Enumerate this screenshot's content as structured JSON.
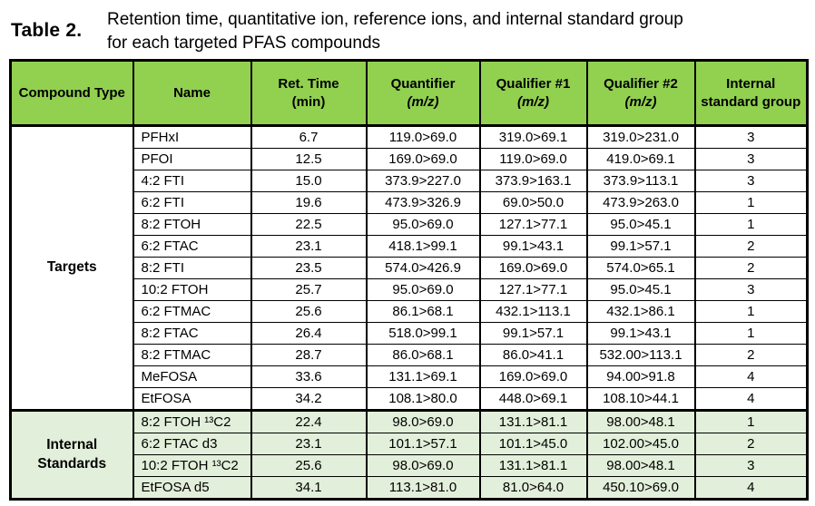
{
  "title": {
    "label": "Table 2.",
    "caption": {
      "line1": "Retention time, quantitative ion, reference ions, and internal standard group",
      "line2": "for each targeted PFAS compounds"
    }
  },
  "colors": {
    "header_bg": "#92D050",
    "targets_bg": "#FFFFFF",
    "internal_standards_bg": "#E2EFDA",
    "border": "#000000",
    "text": "#000000"
  },
  "chart_data": {
    "type": "table",
    "title": "Retention time, quantitative ion, reference ions, and internal standard group for each targeted PFAS compounds"
  },
  "table": {
    "columns": [
      {
        "key": "compound-type",
        "label": "Compound Type",
        "sub": "",
        "sub_italic": false
      },
      {
        "key": "name",
        "label": "Name",
        "sub": "",
        "sub_italic": false
      },
      {
        "key": "ret-time",
        "label": "Ret. Time",
        "sub": "(min)",
        "sub_italic": false
      },
      {
        "key": "quantifier",
        "label": "Quantifier",
        "sub": "(m/z)",
        "sub_italic": true
      },
      {
        "key": "qualifier-1",
        "label": "Qualifier #1",
        "sub": "(m/z)",
        "sub_italic": true
      },
      {
        "key": "qualifier-2",
        "label": "Qualifier #2",
        "sub": "(m/z)",
        "sub_italic": true
      },
      {
        "key": "is-group",
        "label": "Internal standard group",
        "sub": "",
        "sub_italic": false
      }
    ],
    "sections": [
      {
        "group": "Targets",
        "bg": "#FFFFFF",
        "rows": [
          [
            "PFHxI",
            "6.7",
            "119.0>69.0",
            "319.0>69.1",
            "319.0>231.0",
            "3"
          ],
          [
            "PFOI",
            "12.5",
            "169.0>69.0",
            "119.0>69.0",
            "419.0>69.1",
            "3"
          ],
          [
            "4:2 FTI",
            "15.0",
            "373.9>227.0",
            "373.9>163.1",
            "373.9>113.1",
            "3"
          ],
          [
            "6:2 FTI",
            "19.6",
            "473.9>326.9",
            "69.0>50.0",
            "473.9>263.0",
            "1"
          ],
          [
            "8:2 FTOH",
            "22.5",
            "95.0>69.0",
            "127.1>77.1",
            "95.0>45.1",
            "1"
          ],
          [
            "6:2 FTAC",
            "23.1",
            "418.1>99.1",
            "99.1>43.1",
            "99.1>57.1",
            "2"
          ],
          [
            "8:2 FTI",
            "23.5",
            "574.0>426.9",
            "169.0>69.0",
            "574.0>65.1",
            "2"
          ],
          [
            "10:2 FTOH",
            "25.7",
            "95.0>69.0",
            "127.1>77.1",
            "95.0>45.1",
            "3"
          ],
          [
            "6:2 FTMAC",
            "25.6",
            "86.1>68.1",
            "432.1>113.1",
            "432.1>86.1",
            "1"
          ],
          [
            "8:2 FTAC",
            "26.4",
            "518.0>99.1",
            "99.1>57.1",
            "99.1>43.1",
            "1"
          ],
          [
            "8:2 FTMAC",
            "28.7",
            "86.0>68.1",
            "86.0>41.1",
            "532.00>113.1",
            "2"
          ],
          [
            "MeFOSA",
            "33.6",
            "131.1>69.1",
            "169.0>69.0",
            "94.00>91.8",
            "4"
          ],
          [
            "EtFOSA",
            "34.2",
            "108.1>80.0",
            "448.0>69.1",
            "108.10>44.1",
            "4"
          ]
        ]
      },
      {
        "group": "Internal Standards",
        "bg": "#E2EFDA",
        "rows": [
          [
            "8:2 FTOH ¹³C2",
            "22.4",
            "98.0>69.0",
            "131.1>81.1",
            "98.00>48.1",
            "1"
          ],
          [
            "6:2 FTAC d3",
            "23.1",
            "101.1>57.1",
            "101.1>45.0",
            "102.00>45.0",
            "2"
          ],
          [
            "10:2 FTOH ¹³C2",
            "25.6",
            "98.0>69.0",
            "131.1>81.1",
            "98.00>48.1",
            "3"
          ],
          [
            "EtFOSA d5",
            "34.1",
            "113.1>81.0",
            "81.0>64.0",
            "450.10>69.0",
            "4"
          ]
        ]
      }
    ]
  }
}
